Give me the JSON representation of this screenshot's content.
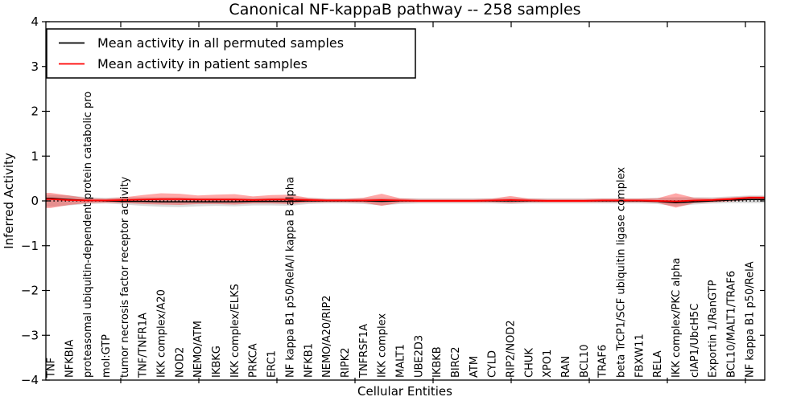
{
  "title": "Canonical NF-kappaB pathway -- 258 samples",
  "legend": {
    "items": [
      {
        "label": "Mean activity in all permuted samples",
        "color": "#000000"
      },
      {
        "label": "Mean activity in patient samples",
        "color": "#ff0000"
      }
    ],
    "position": "upper left"
  },
  "axes": {
    "xlabel": "Cellular Entities",
    "ylabel": "Inferred Activity"
  },
  "chart_data": {
    "type": "line",
    "title": "Canonical NF-kappaB pathway -- 258 samples",
    "xlabel": "Cellular Entities",
    "ylabel": "Inferred Activity",
    "ylim": [
      -4,
      4
    ],
    "yticks": [
      4,
      3,
      2,
      1,
      0,
      -1,
      -2,
      -3,
      -4
    ],
    "ytick_labels": [
      "4",
      "3",
      "2",
      "1",
      "0",
      "−1",
      "−2",
      "−3",
      "−4"
    ],
    "grid": false,
    "legend_position": "upper left",
    "zero_line": {
      "y": 0,
      "style": "dotted",
      "color": "#000000"
    },
    "categories": [
      "TNF",
      "NFKBIA",
      "proteasomal ubiquitin-dependent protein catabolic pro",
      "mol:GTP",
      "tumor necrosis factor receptor activity",
      "TNF/TNFR1A",
      "IKK complex/A20",
      "NOD2",
      "NEMO/ATM",
      "IKBKG",
      "IKK complex/ELKS",
      "PRKCA",
      "ERC1",
      "NF kappa B1 p50/RelA/I kappa B alpha",
      "NFKB1",
      "NEMO/A20/RIP2",
      "RIPK2",
      "TNFRSF1A",
      "IKK complex",
      "MALT1",
      "UBE2D3",
      "IKBKB",
      "BIRC2",
      "ATM",
      "CYLD",
      "RIP2/NOD2",
      "CHUK",
      "XPO1",
      "RAN",
      "BCL10",
      "TRAF6",
      "beta TrCP1/SCF ubiquitin ligase complex",
      "FBXW11",
      "RELA",
      "IKK complex/PKC alpha",
      "cIAP1/UbcH5C",
      "Exportin 1/RanGTP",
      "BCL10/MALT1/TRAF6",
      "NF kappa B1 p50/RelA"
    ],
    "series": [
      {
        "name": "Mean activity in all permuted samples",
        "color": "#000000",
        "values": [
          0.06,
          0.03,
          0.01,
          0.0,
          -0.01,
          -0.01,
          -0.02,
          -0.02,
          -0.02,
          -0.02,
          -0.02,
          -0.01,
          -0.01,
          -0.01,
          0.0,
          0.0,
          0.0,
          0.0,
          -0.01,
          0.0,
          0.0,
          0.0,
          0.0,
          0.0,
          0.0,
          0.0,
          0.0,
          0.0,
          0.0,
          0.0,
          0.0,
          0.0,
          0.0,
          -0.01,
          -0.04,
          -0.02,
          0.0,
          0.02,
          0.03
        ]
      },
      {
        "name": "Mean activity in patient samples",
        "color": "#ff0000",
        "values": [
          0.04,
          0.02,
          0.01,
          0.01,
          0.02,
          0.03,
          0.04,
          0.04,
          0.03,
          0.03,
          0.03,
          0.02,
          0.03,
          0.03,
          0.02,
          0.01,
          0.01,
          0.01,
          0.02,
          0.01,
          0.0,
          0.0,
          0.0,
          0.0,
          0.01,
          0.02,
          0.01,
          0.0,
          0.0,
          0.0,
          0.01,
          0.01,
          0.01,
          0.0,
          -0.01,
          0.01,
          0.02,
          0.04,
          0.07
        ]
      }
    ],
    "bands": [
      {
        "name": "permuted-samples-std-band",
        "color": "#8c8c8c",
        "opacity": 0.32,
        "upper": [
          0.14,
          0.12,
          0.08,
          0.07,
          0.08,
          0.08,
          0.08,
          0.08,
          0.07,
          0.07,
          0.07,
          0.07,
          0.07,
          0.08,
          0.07,
          0.06,
          0.06,
          0.06,
          0.07,
          0.06,
          0.06,
          0.06,
          0.06,
          0.06,
          0.06,
          0.07,
          0.06,
          0.06,
          0.06,
          0.06,
          0.06,
          0.06,
          0.06,
          0.07,
          0.08,
          0.08,
          0.08,
          0.1,
          0.12
        ],
        "lower": [
          -0.13,
          -0.1,
          -0.07,
          -0.06,
          -0.08,
          -0.11,
          -0.13,
          -0.14,
          -0.12,
          -0.11,
          -0.12,
          -0.1,
          -0.1,
          -0.11,
          -0.07,
          -0.06,
          -0.06,
          -0.07,
          -0.1,
          -0.07,
          -0.06,
          -0.06,
          -0.06,
          -0.06,
          -0.06,
          -0.07,
          -0.06,
          -0.06,
          -0.06,
          -0.06,
          -0.06,
          -0.06,
          -0.06,
          -0.07,
          -0.12,
          -0.08,
          -0.06,
          -0.05,
          -0.05
        ]
      },
      {
        "name": "patient-samples-std-band",
        "color": "#ff0000",
        "opacity": 0.34,
        "upper": [
          0.18,
          0.12,
          0.06,
          0.05,
          0.08,
          0.13,
          0.17,
          0.16,
          0.12,
          0.14,
          0.15,
          0.1,
          0.13,
          0.14,
          0.07,
          0.04,
          0.04,
          0.07,
          0.16,
          0.06,
          0.04,
          0.04,
          0.04,
          0.04,
          0.05,
          0.11,
          0.05,
          0.04,
          0.04,
          0.04,
          0.05,
          0.05,
          0.05,
          0.06,
          0.17,
          0.07,
          0.06,
          0.08,
          0.1
        ],
        "lower": [
          -0.16,
          -0.09,
          -0.05,
          -0.04,
          -0.05,
          -0.07,
          -0.08,
          -0.09,
          -0.07,
          -0.07,
          -0.08,
          -0.06,
          -0.06,
          -0.07,
          -0.04,
          -0.03,
          -0.03,
          -0.04,
          -0.11,
          -0.04,
          -0.03,
          -0.03,
          -0.03,
          -0.03,
          -0.03,
          -0.05,
          -0.03,
          -0.03,
          -0.03,
          -0.03,
          -0.03,
          -0.03,
          -0.03,
          -0.04,
          -0.15,
          -0.05,
          -0.03,
          -0.01,
          0.02
        ]
      }
    ]
  }
}
